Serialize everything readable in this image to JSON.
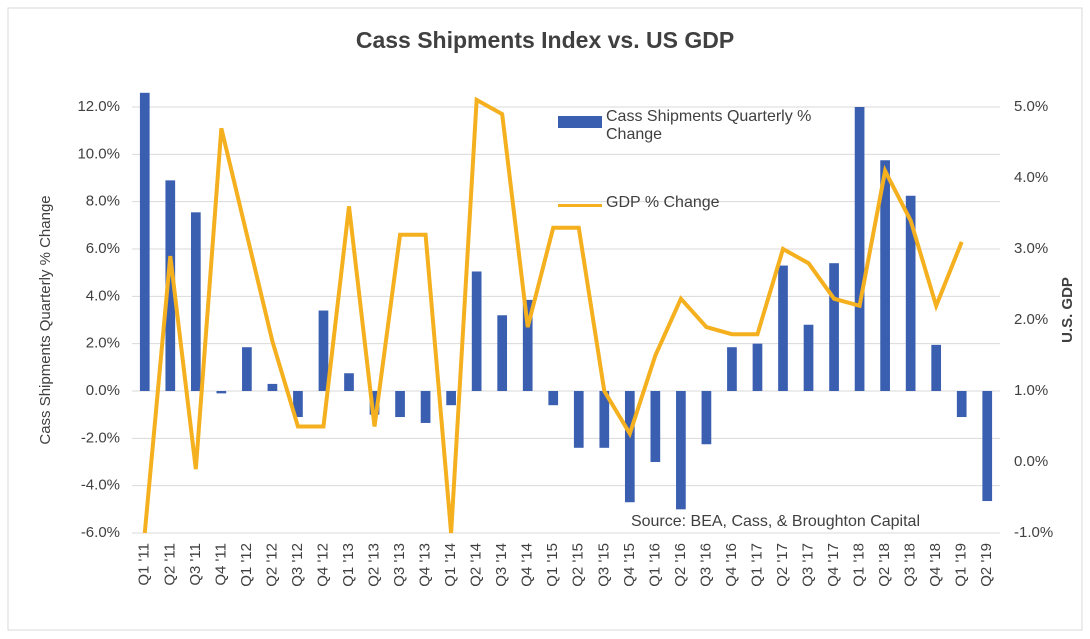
{
  "chart_data": {
    "type": "bar-line",
    "title": "Cass Shipments Index vs. US GDP",
    "ylabel": "Cass Shipments Quarterly % Change",
    "y2label": "U.S. GDP",
    "annotation": "Source: BEA, Cass, & Broughton Capital",
    "categories": [
      "Q1 '11",
      "Q2 '11",
      "Q3 '11",
      "Q4 '11",
      "Q1 '12",
      "Q2 '12",
      "Q3 '12",
      "Q4 '12",
      "Q1 '13",
      "Q2 '13",
      "Q3 '13",
      "Q4 '13",
      "Q1 '14",
      "Q2 '14",
      "Q3 '14",
      "Q4 '14",
      "Q1 '15",
      "Q2 '15",
      "Q3 '15",
      "Q4 '15",
      "Q1 '16",
      "Q2 '16",
      "Q3 '16",
      "Q4 '16",
      "Q1 '17",
      "Q2 '17",
      "Q3 '17",
      "Q4 '17",
      "Q1 '18",
      "Q2 '18",
      "Q3 '18",
      "Q4 '18",
      "Q1 '19",
      "Q2 '19"
    ],
    "series": [
      {
        "name": "Cass Shipments Quarterly % Change",
        "type": "bar",
        "color": "#3a5fb0",
        "values": [
          12.6,
          8.9,
          7.55,
          -0.1,
          1.85,
          0.3,
          -1.1,
          3.4,
          0.75,
          -1.0,
          -1.1,
          -1.35,
          -0.6,
          5.05,
          3.2,
          3.85,
          -0.6,
          -2.4,
          -2.4,
          -4.7,
          -3.0,
          -5.0,
          -2.25,
          1.85,
          2.0,
          5.3,
          2.8,
          5.4,
          12.0,
          9.75,
          8.25,
          1.95,
          -1.1,
          -4.65
        ]
      },
      {
        "name": "GDP % Change",
        "type": "line",
        "axis": "y2",
        "color": "#f4b01f",
        "values": [
          -1.0,
          2.9,
          -0.1,
          4.7,
          3.2,
          1.7,
          0.5,
          0.5,
          3.6,
          0.5,
          3.2,
          3.2,
          -1.0,
          5.1,
          4.9,
          1.9,
          3.3,
          3.3,
          1.0,
          0.4,
          1.5,
          2.3,
          1.9,
          1.8,
          1.8,
          3.0,
          2.8,
          2.3,
          2.2,
          4.1,
          3.4,
          2.2,
          3.1,
          null
        ]
      }
    ],
    "ylim": [
      -6,
      12
    ],
    "yticks": [
      {
        "value": -6,
        "label": "-6.0%"
      },
      {
        "value": -4,
        "label": "-4.0%"
      },
      {
        "value": -2,
        "label": "-2.0%"
      },
      {
        "value": 0,
        "label": "0.0%"
      },
      {
        "value": 2,
        "label": "2.0%"
      },
      {
        "value": 4,
        "label": "4.0%"
      },
      {
        "value": 6,
        "label": "6.0%"
      },
      {
        "value": 8,
        "label": "8.0%"
      },
      {
        "value": 10,
        "label": "10.0%"
      },
      {
        "value": 12,
        "label": "12.0%"
      }
    ],
    "y2lim": [
      -1,
      5
    ],
    "y2ticks": [
      {
        "value": -1,
        "label": "-1.0%"
      },
      {
        "value": 0,
        "label": "0.0%"
      },
      {
        "value": 1,
        "label": "1.0%"
      },
      {
        "value": 2,
        "label": "2.0%"
      },
      {
        "value": 3,
        "label": "3.0%"
      },
      {
        "value": 4,
        "label": "4.0%"
      },
      {
        "value": 5,
        "label": "5.0%"
      }
    ],
    "grid": true
  }
}
